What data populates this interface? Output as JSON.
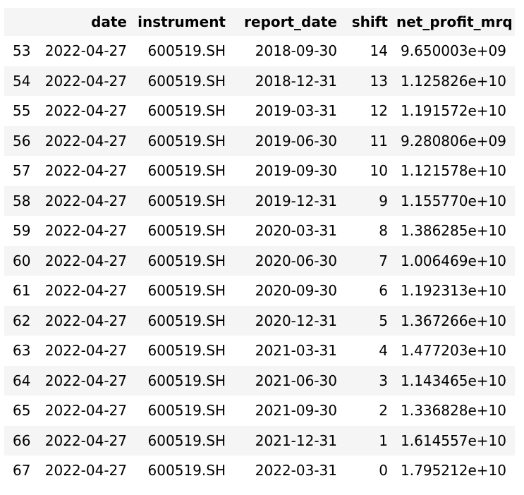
{
  "table": {
    "columns": [
      "",
      "date",
      "instrument",
      "report_date",
      "shift",
      "net_profit_mrq"
    ],
    "rows": [
      {
        "index": "53",
        "date": "2022-04-27",
        "instrument": "600519.SH",
        "report_date": "2018-09-30",
        "shift": "14",
        "net_profit_mrq": "9.650003e+09"
      },
      {
        "index": "54",
        "date": "2022-04-27",
        "instrument": "600519.SH",
        "report_date": "2018-12-31",
        "shift": "13",
        "net_profit_mrq": "1.125826e+10"
      },
      {
        "index": "55",
        "date": "2022-04-27",
        "instrument": "600519.SH",
        "report_date": "2019-03-31",
        "shift": "12",
        "net_profit_mrq": "1.191572e+10"
      },
      {
        "index": "56",
        "date": "2022-04-27",
        "instrument": "600519.SH",
        "report_date": "2019-06-30",
        "shift": "11",
        "net_profit_mrq": "9.280806e+09"
      },
      {
        "index": "57",
        "date": "2022-04-27",
        "instrument": "600519.SH",
        "report_date": "2019-09-30",
        "shift": "10",
        "net_profit_mrq": "1.121578e+10"
      },
      {
        "index": "58",
        "date": "2022-04-27",
        "instrument": "600519.SH",
        "report_date": "2019-12-31",
        "shift": "9",
        "net_profit_mrq": "1.155770e+10"
      },
      {
        "index": "59",
        "date": "2022-04-27",
        "instrument": "600519.SH",
        "report_date": "2020-03-31",
        "shift": "8",
        "net_profit_mrq": "1.386285e+10"
      },
      {
        "index": "60",
        "date": "2022-04-27",
        "instrument": "600519.SH",
        "report_date": "2020-06-30",
        "shift": "7",
        "net_profit_mrq": "1.006469e+10"
      },
      {
        "index": "61",
        "date": "2022-04-27",
        "instrument": "600519.SH",
        "report_date": "2020-09-30",
        "shift": "6",
        "net_profit_mrq": "1.192313e+10"
      },
      {
        "index": "62",
        "date": "2022-04-27",
        "instrument": "600519.SH",
        "report_date": "2020-12-31",
        "shift": "5",
        "net_profit_mrq": "1.367266e+10"
      },
      {
        "index": "63",
        "date": "2022-04-27",
        "instrument": "600519.SH",
        "report_date": "2021-03-31",
        "shift": "4",
        "net_profit_mrq": "1.477203e+10"
      },
      {
        "index": "64",
        "date": "2022-04-27",
        "instrument": "600519.SH",
        "report_date": "2021-06-30",
        "shift": "3",
        "net_profit_mrq": "1.143465e+10"
      },
      {
        "index": "65",
        "date": "2022-04-27",
        "instrument": "600519.SH",
        "report_date": "2021-09-30",
        "shift": "2",
        "net_profit_mrq": "1.336828e+10"
      },
      {
        "index": "66",
        "date": "2022-04-27",
        "instrument": "600519.SH",
        "report_date": "2021-12-31",
        "shift": "1",
        "net_profit_mrq": "1.614557e+10"
      },
      {
        "index": "67",
        "date": "2022-04-27",
        "instrument": "600519.SH",
        "report_date": "2022-03-31",
        "shift": "0",
        "net_profit_mrq": "1.795212e+10"
      }
    ]
  }
}
